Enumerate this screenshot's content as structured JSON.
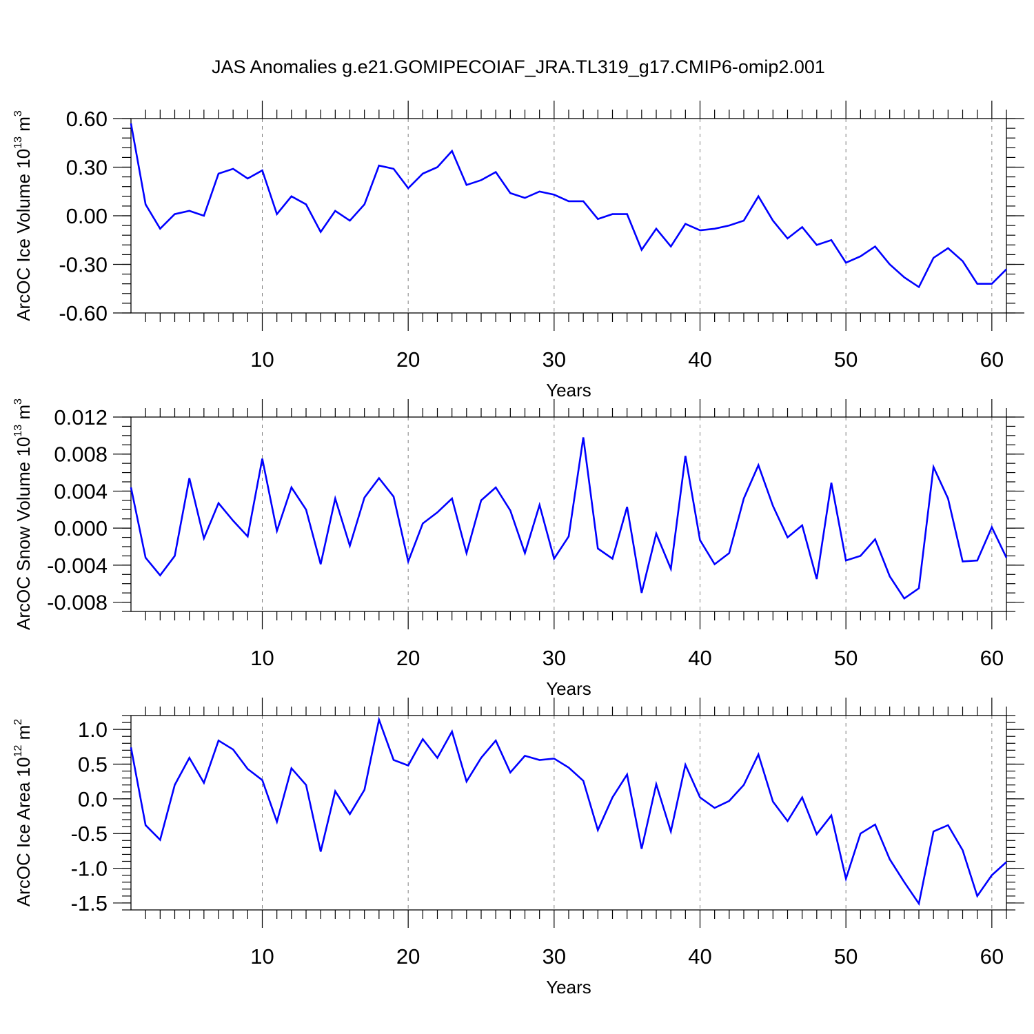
{
  "figure_title": "JAS Anomalies g.e21.GOMIPECOIAF_JRA.TL319_g17.CMIP6-omip2.001",
  "chart_data": [
    {
      "type": "line",
      "ylabel": "ArcOC Ice Volume 10",
      "ylabel_exp": "13",
      "ylabel_unit": " m",
      "ylabel_unit_exp": "3",
      "xlabel": "Years",
      "xlim": [
        1,
        61
      ],
      "ylim": [
        -0.6,
        0.6
      ],
      "x_ticks": [
        10,
        20,
        30,
        40,
        50,
        60
      ],
      "x_tick_labels": [
        "10",
        "20",
        "30",
        "40",
        "50",
        "60"
      ],
      "y_ticks": [
        0.6,
        0.3,
        0.0,
        -0.3,
        -0.6
      ],
      "y_tick_labels": [
        "0.60",
        "0.30",
        "0.00",
        "-0.30",
        "-0.60"
      ],
      "y_minor_step": 0.06,
      "grid": "vertical dashed at major x ticks",
      "line_color": "#0000ff",
      "series": [
        {
          "x": [
            1,
            2,
            3,
            4,
            5,
            6,
            7,
            8,
            9,
            10,
            11,
            12,
            13,
            14,
            15,
            16,
            17,
            18,
            19,
            20,
            21,
            22,
            23,
            24,
            25,
            26,
            27,
            28,
            29,
            30,
            31,
            32,
            33,
            34,
            35,
            36,
            37,
            38,
            39,
            40,
            41,
            42,
            43,
            44,
            45,
            46,
            47,
            48,
            49,
            50,
            51,
            52,
            53,
            54,
            55,
            56,
            57,
            58,
            59,
            60,
            61
          ],
          "values": [
            0.57,
            0.07,
            -0.08,
            0.01,
            0.03,
            0.0,
            0.26,
            0.29,
            0.23,
            0.28,
            0.01,
            0.12,
            0.07,
            -0.1,
            0.03,
            -0.03,
            0.07,
            0.31,
            0.29,
            0.17,
            0.26,
            0.3,
            0.4,
            0.19,
            0.22,
            0.27,
            0.14,
            0.11,
            0.15,
            0.13,
            0.09,
            0.09,
            -0.02,
            0.01,
            0.01,
            -0.21,
            -0.08,
            -0.19,
            -0.05,
            -0.09,
            -0.08,
            -0.06,
            -0.03,
            0.12,
            -0.03,
            -0.14,
            -0.07,
            -0.18,
            -0.15,
            -0.29,
            -0.25,
            -0.19,
            -0.3,
            -0.38,
            -0.44,
            -0.26,
            -0.2,
            -0.28,
            -0.42,
            -0.42,
            -0.33
          ]
        }
      ]
    },
    {
      "type": "line",
      "ylabel": "ArcOC Snow Volume 10",
      "ylabel_exp": "13",
      "ylabel_unit": " m",
      "ylabel_unit_exp": "3",
      "xlabel": "Years",
      "xlim": [
        1,
        61
      ],
      "ylim": [
        -0.009,
        0.012
      ],
      "x_ticks": [
        10,
        20,
        30,
        40,
        50,
        60
      ],
      "x_tick_labels": [
        "10",
        "20",
        "30",
        "40",
        "50",
        "60"
      ],
      "y_ticks": [
        0.012,
        0.008,
        0.004,
        0.0,
        -0.004,
        -0.008
      ],
      "y_tick_labels": [
        "0.012",
        "0.008",
        "0.004",
        "0.000",
        "-0.004",
        "-0.008"
      ],
      "y_minor_step": 0.001,
      "grid": "vertical dashed at major x ticks",
      "line_color": "#0000ff",
      "series": [
        {
          "x": [
            1,
            2,
            3,
            4,
            5,
            6,
            7,
            8,
            9,
            10,
            11,
            12,
            13,
            14,
            15,
            16,
            17,
            18,
            19,
            20,
            21,
            22,
            23,
            24,
            25,
            26,
            27,
            28,
            29,
            30,
            31,
            32,
            33,
            34,
            35,
            36,
            37,
            38,
            39,
            40,
            41,
            42,
            43,
            44,
            45,
            46,
            47,
            48,
            49,
            50,
            51,
            52,
            53,
            54,
            55,
            56,
            57,
            58,
            59,
            60,
            61
          ],
          "values": [
            0.0044,
            -0.0032,
            -0.0051,
            -0.003,
            0.0054,
            -0.0011,
            0.0027,
            0.0008,
            -0.0009,
            0.0075,
            -0.0003,
            0.0044,
            0.002,
            -0.0039,
            0.0032,
            -0.0019,
            0.0033,
            0.0054,
            0.0034,
            -0.0036,
            0.0005,
            0.0017,
            0.0032,
            -0.0027,
            0.003,
            0.0044,
            0.0019,
            -0.0027,
            0.0025,
            -0.0033,
            -0.0009,
            0.0098,
            -0.0022,
            -0.0033,
            0.0023,
            -0.007,
            -0.0006,
            -0.0044,
            0.0078,
            -0.0013,
            -0.0039,
            -0.0027,
            0.0032,
            0.0068,
            0.0024,
            -0.001,
            0.0003,
            -0.0055,
            0.0049,
            -0.0035,
            -0.003,
            -0.0012,
            -0.0052,
            -0.0076,
            -0.0065,
            0.0066,
            0.0032,
            -0.0036,
            -0.0035,
            0.0001,
            -0.0032
          ]
        }
      ]
    },
    {
      "type": "line",
      "ylabel": "ArcOC Ice Area 10",
      "ylabel_exp": "12",
      "ylabel_unit": " m",
      "ylabel_unit_exp": "2",
      "xlabel": "Years",
      "xlim": [
        1,
        61
      ],
      "ylim": [
        -1.6,
        1.2
      ],
      "x_ticks": [
        10,
        20,
        30,
        40,
        50,
        60
      ],
      "x_tick_labels": [
        "10",
        "20",
        "30",
        "40",
        "50",
        "60"
      ],
      "y_ticks": [
        1.0,
        0.5,
        0.0,
        -0.5,
        -1.0,
        -1.5
      ],
      "y_tick_labels": [
        "1.0",
        "0.5",
        "0.0",
        "-0.5",
        "-1.0",
        "-1.5"
      ],
      "y_minor_step": 0.1,
      "grid": "vertical dashed at major x ticks",
      "line_color": "#0000ff",
      "series": [
        {
          "x": [
            1,
            2,
            3,
            4,
            5,
            6,
            7,
            8,
            9,
            10,
            11,
            12,
            13,
            14,
            15,
            16,
            17,
            18,
            19,
            20,
            21,
            22,
            23,
            24,
            25,
            26,
            27,
            28,
            29,
            30,
            31,
            32,
            33,
            34,
            35,
            36,
            37,
            38,
            39,
            40,
            41,
            42,
            43,
            44,
            45,
            46,
            47,
            48,
            49,
            50,
            51,
            52,
            53,
            54,
            55,
            56,
            57,
            58,
            59,
            60,
            61
          ],
          "values": [
            0.74,
            -0.38,
            -0.59,
            0.2,
            0.59,
            0.23,
            0.84,
            0.71,
            0.43,
            0.27,
            -0.33,
            0.44,
            0.2,
            -0.76,
            0.11,
            -0.22,
            0.13,
            1.14,
            0.56,
            0.48,
            0.86,
            0.59,
            0.97,
            0.25,
            0.59,
            0.84,
            0.38,
            0.62,
            0.56,
            0.58,
            0.45,
            0.26,
            -0.45,
            0.02,
            0.35,
            -0.72,
            0.21,
            -0.47,
            0.49,
            0.02,
            -0.13,
            -0.03,
            0.2,
            0.64,
            -0.04,
            -0.32,
            0.02,
            -0.51,
            -0.24,
            -1.15,
            -0.5,
            -0.37,
            -0.87,
            -1.2,
            -1.51,
            -0.47,
            -0.38,
            -0.74,
            -1.4,
            -1.1,
            -0.91
          ]
        }
      ]
    }
  ]
}
